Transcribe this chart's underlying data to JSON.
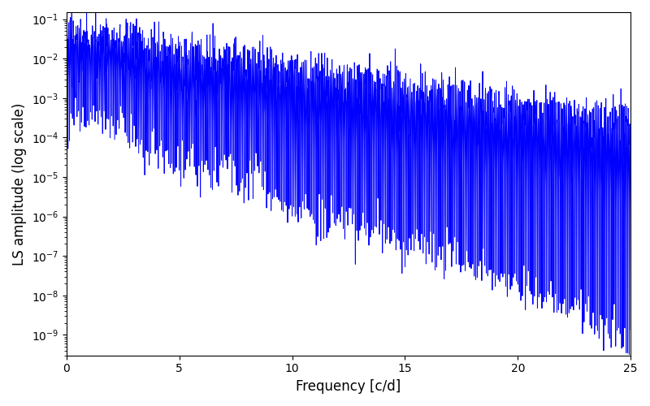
{
  "title": "",
  "xlabel": "Frequency [c/d]",
  "ylabel": "LS amplitude (log scale)",
  "line_color": "#0000ff",
  "line_width": 0.7,
  "xmin": 0,
  "xmax": 25,
  "ymin": 3e-10,
  "ymax": 0.15,
  "yscale": "log",
  "figsize": [
    8.0,
    5.0
  ],
  "dpi": 100,
  "seed": 12345,
  "n_points": 3000,
  "bg_color": "#ffffff"
}
